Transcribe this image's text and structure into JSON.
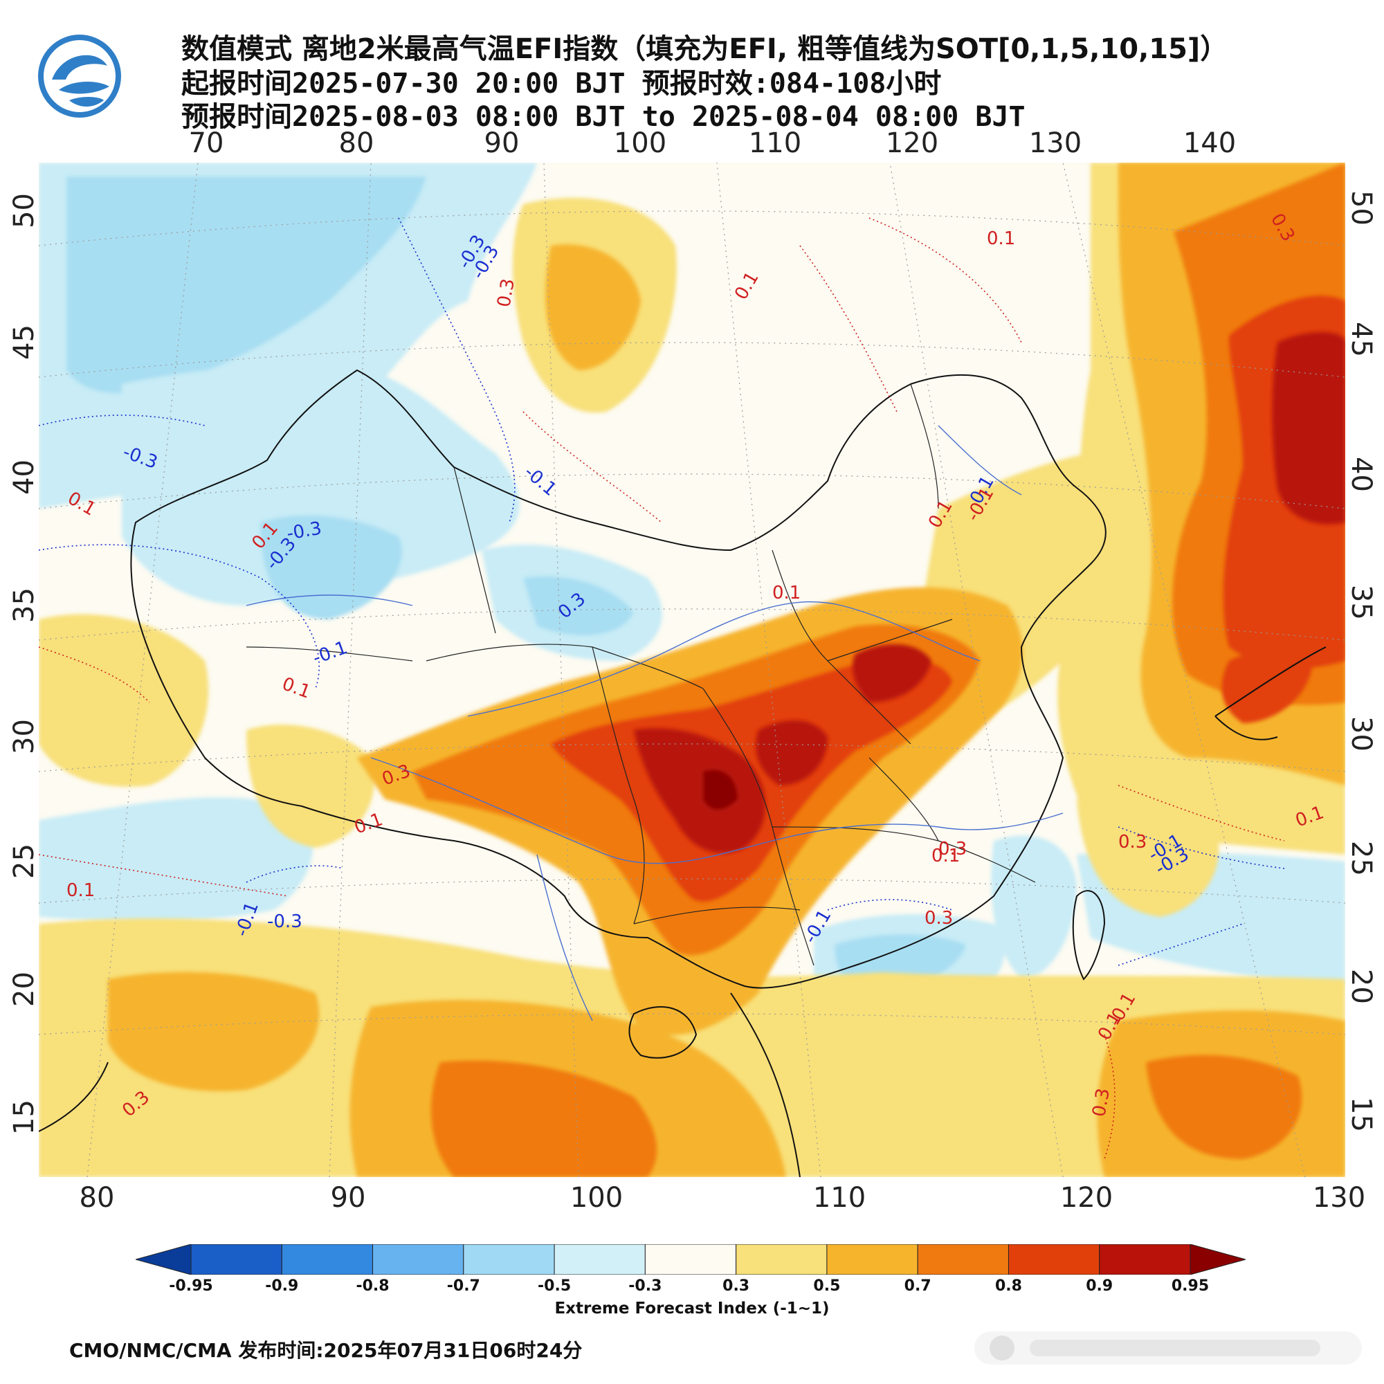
{
  "title": {
    "line1": "数值模式 离地2米最高气温EFI指数（填充为EFI, 粗等值线为SOT[0,1,5,10,15]）",
    "line2": "起报时间2025-07-30 20:00 BJT 预报时效:084-108小时",
    "line3": "预报时间2025-08-03 08:00 BJT to 2025-08-04 08:00 BJT"
  },
  "axes": {
    "top_lon_ticks": [
      "70",
      "80",
      "90",
      "100",
      "110",
      "120",
      "130",
      "140"
    ],
    "bottom_lon_ticks": [
      "80",
      "90",
      "100",
      "110",
      "120",
      "130"
    ],
    "lat_ticks": [
      "50",
      "45",
      "40",
      "35",
      "30",
      "25",
      "20",
      "15"
    ]
  },
  "contour_labels": [
    "-0.3",
    "-0.3",
    "0.3",
    "0.1",
    "0.1",
    "0.3",
    "-0.3",
    "0.1",
    "-0.1",
    "-0.3",
    "0.1",
    "-0.3",
    "0.1",
    "0.3",
    "-0.1",
    "0.1",
    "0.1",
    "-0.1",
    "0.1",
    "0.3",
    "0.1",
    "0.3",
    "0.3",
    "0.1",
    "-0.1",
    "-0.3",
    "0.1",
    "0.3",
    "0.1",
    "-0.1",
    "-0.3",
    "-0.1",
    "0.1",
    "-0.1",
    "0.3",
    "0.3"
  ],
  "colorbar": {
    "title": "Extreme Forecast Index (-1~1)",
    "labels": [
      "-0.95",
      "-0.9",
      "-0.8",
      "-0.7",
      "-0.5",
      "-0.3",
      "0.3",
      "0.5",
      "0.7",
      "0.8",
      "0.9",
      "0.95"
    ],
    "colors": [
      "#0a3d9a",
      "#1a5fc8",
      "#3388e0",
      "#66b3f0",
      "#9fd9f4",
      "#d2f0f7",
      "#fdfbf2",
      "#f8e07a",
      "#f6b42d",
      "#f07a10",
      "#e2400a",
      "#b8120a",
      "#8a0000"
    ]
  },
  "footer": {
    "text": "CMO/NMC/CMA 发布时间:2025年07月31日06时24分"
  },
  "icons": {
    "logo": "cma-logo-icon"
  }
}
